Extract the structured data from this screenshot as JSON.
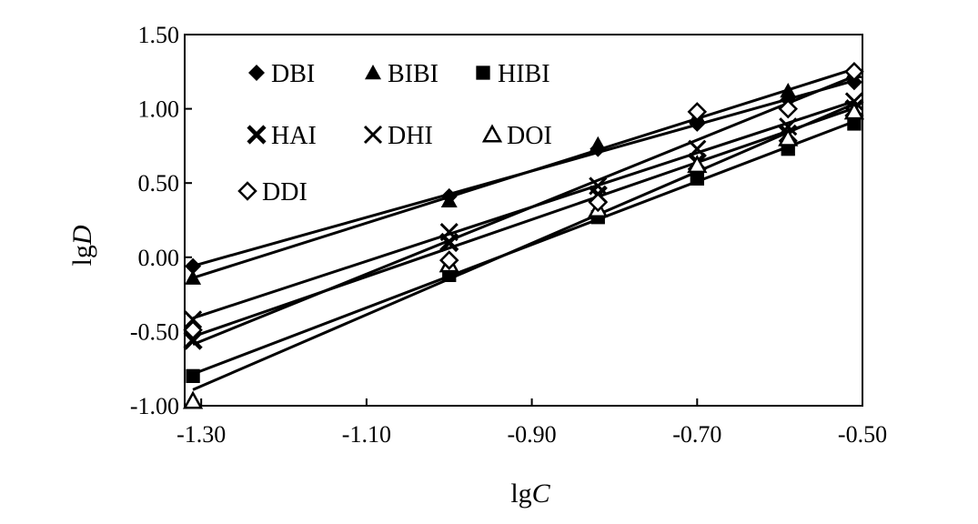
{
  "chart_data": {
    "type": "line",
    "title": "",
    "xlabel": "lg",
    "xlabel_var": "C",
    "ylabel": "lg",
    "ylabel_var": "D",
    "xlim": [
      -1.32,
      -0.5
    ],
    "ylim": [
      -1.0,
      1.5
    ],
    "x_ticks": [
      -1.3,
      -1.1,
      -0.9,
      -0.7,
      -0.5
    ],
    "x_tick_labels": [
      "-1.30",
      "-1.10",
      "-0.90",
      "-0.70",
      "-0.50"
    ],
    "y_ticks": [
      -1.0,
      -0.5,
      0.0,
      0.5,
      1.0,
      1.5
    ],
    "y_tick_labels": [
      "-1.00",
      "-0.50",
      "0.00",
      "0.50",
      "1.00",
      "1.50"
    ],
    "grid": false,
    "legend_position": "top-left",
    "x": [
      -1.31,
      -1.0,
      -0.82,
      -0.7,
      -0.59,
      -0.51
    ],
    "series": [
      {
        "name": "DBI",
        "marker": "diamond-filled",
        "values": [
          -0.06,
          0.41,
          0.73,
          0.9,
          1.06,
          1.18
        ]
      },
      {
        "name": "BIBI",
        "marker": "triangle-filled",
        "values": [
          -0.14,
          0.38,
          0.76,
          0.95,
          1.12,
          1.25
        ]
      },
      {
        "name": "HIBI",
        "marker": "square-filled",
        "values": [
          -0.8,
          -0.12,
          0.27,
          0.53,
          0.73,
          0.9
        ]
      },
      {
        "name": "HAI",
        "marker": "x-bold",
        "values": [
          -0.56,
          0.1,
          0.42,
          0.64,
          0.83,
          1.0
        ]
      },
      {
        "name": "DHI",
        "marker": "x-thin",
        "values": [
          -0.42,
          0.17,
          0.48,
          0.73,
          0.88,
          1.05
        ]
      },
      {
        "name": "DOI",
        "marker": "triangle-open",
        "values": [
          -0.97,
          -0.05,
          0.32,
          0.62,
          0.8,
          0.98
        ]
      },
      {
        "name": "DDI",
        "marker": "diamond-open",
        "values": [
          -0.49,
          -0.02,
          0.37,
          0.98,
          1.0,
          1.25
        ]
      }
    ]
  }
}
